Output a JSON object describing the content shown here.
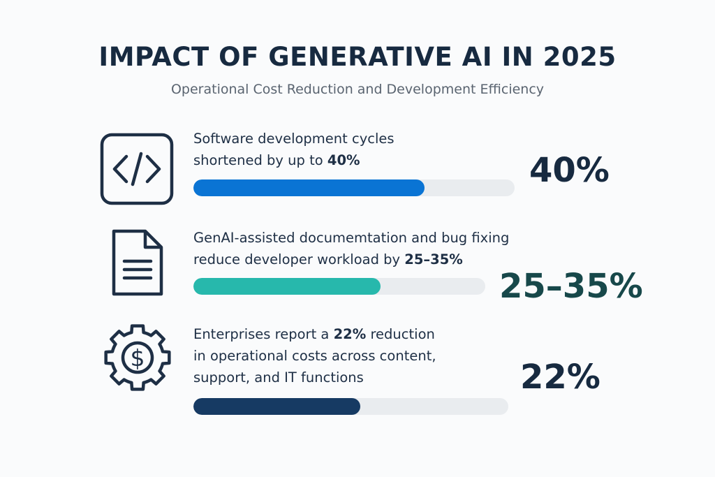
{
  "header": {
    "title": "IMPACT OF GENERATIVE AI IN 2025",
    "subtitle": "Operational Cost Reduction and Development Efficiency"
  },
  "rows": [
    {
      "icon": "code-icon",
      "line1": "Software development cycles",
      "line2_pre": "shortened by up to ",
      "line2_bold": "40%",
      "stat": "40%",
      "progress": 0.72,
      "color": "#0a74d4",
      "stat_color": "#172a40"
    },
    {
      "icon": "document-icon",
      "line1": "GenAI-assisted documemtation and bug fixing",
      "line2_pre": "reduce developer workload by ",
      "line2_bold": "25–35%",
      "stat": "25–35%",
      "progress": 0.64,
      "color": "#27b8ac",
      "stat_color": "#17484a"
    },
    {
      "icon": "gear-dollar-icon",
      "line1_pre": "Enterprises report a ",
      "line1_bold": "22%",
      "line1_post": " reduction",
      "line2": "in operational costs across content,",
      "line3": "support, and IT functions",
      "stat": "22%",
      "progress": 0.53,
      "color": "#163a63",
      "stat_color": "#172a40"
    }
  ]
}
